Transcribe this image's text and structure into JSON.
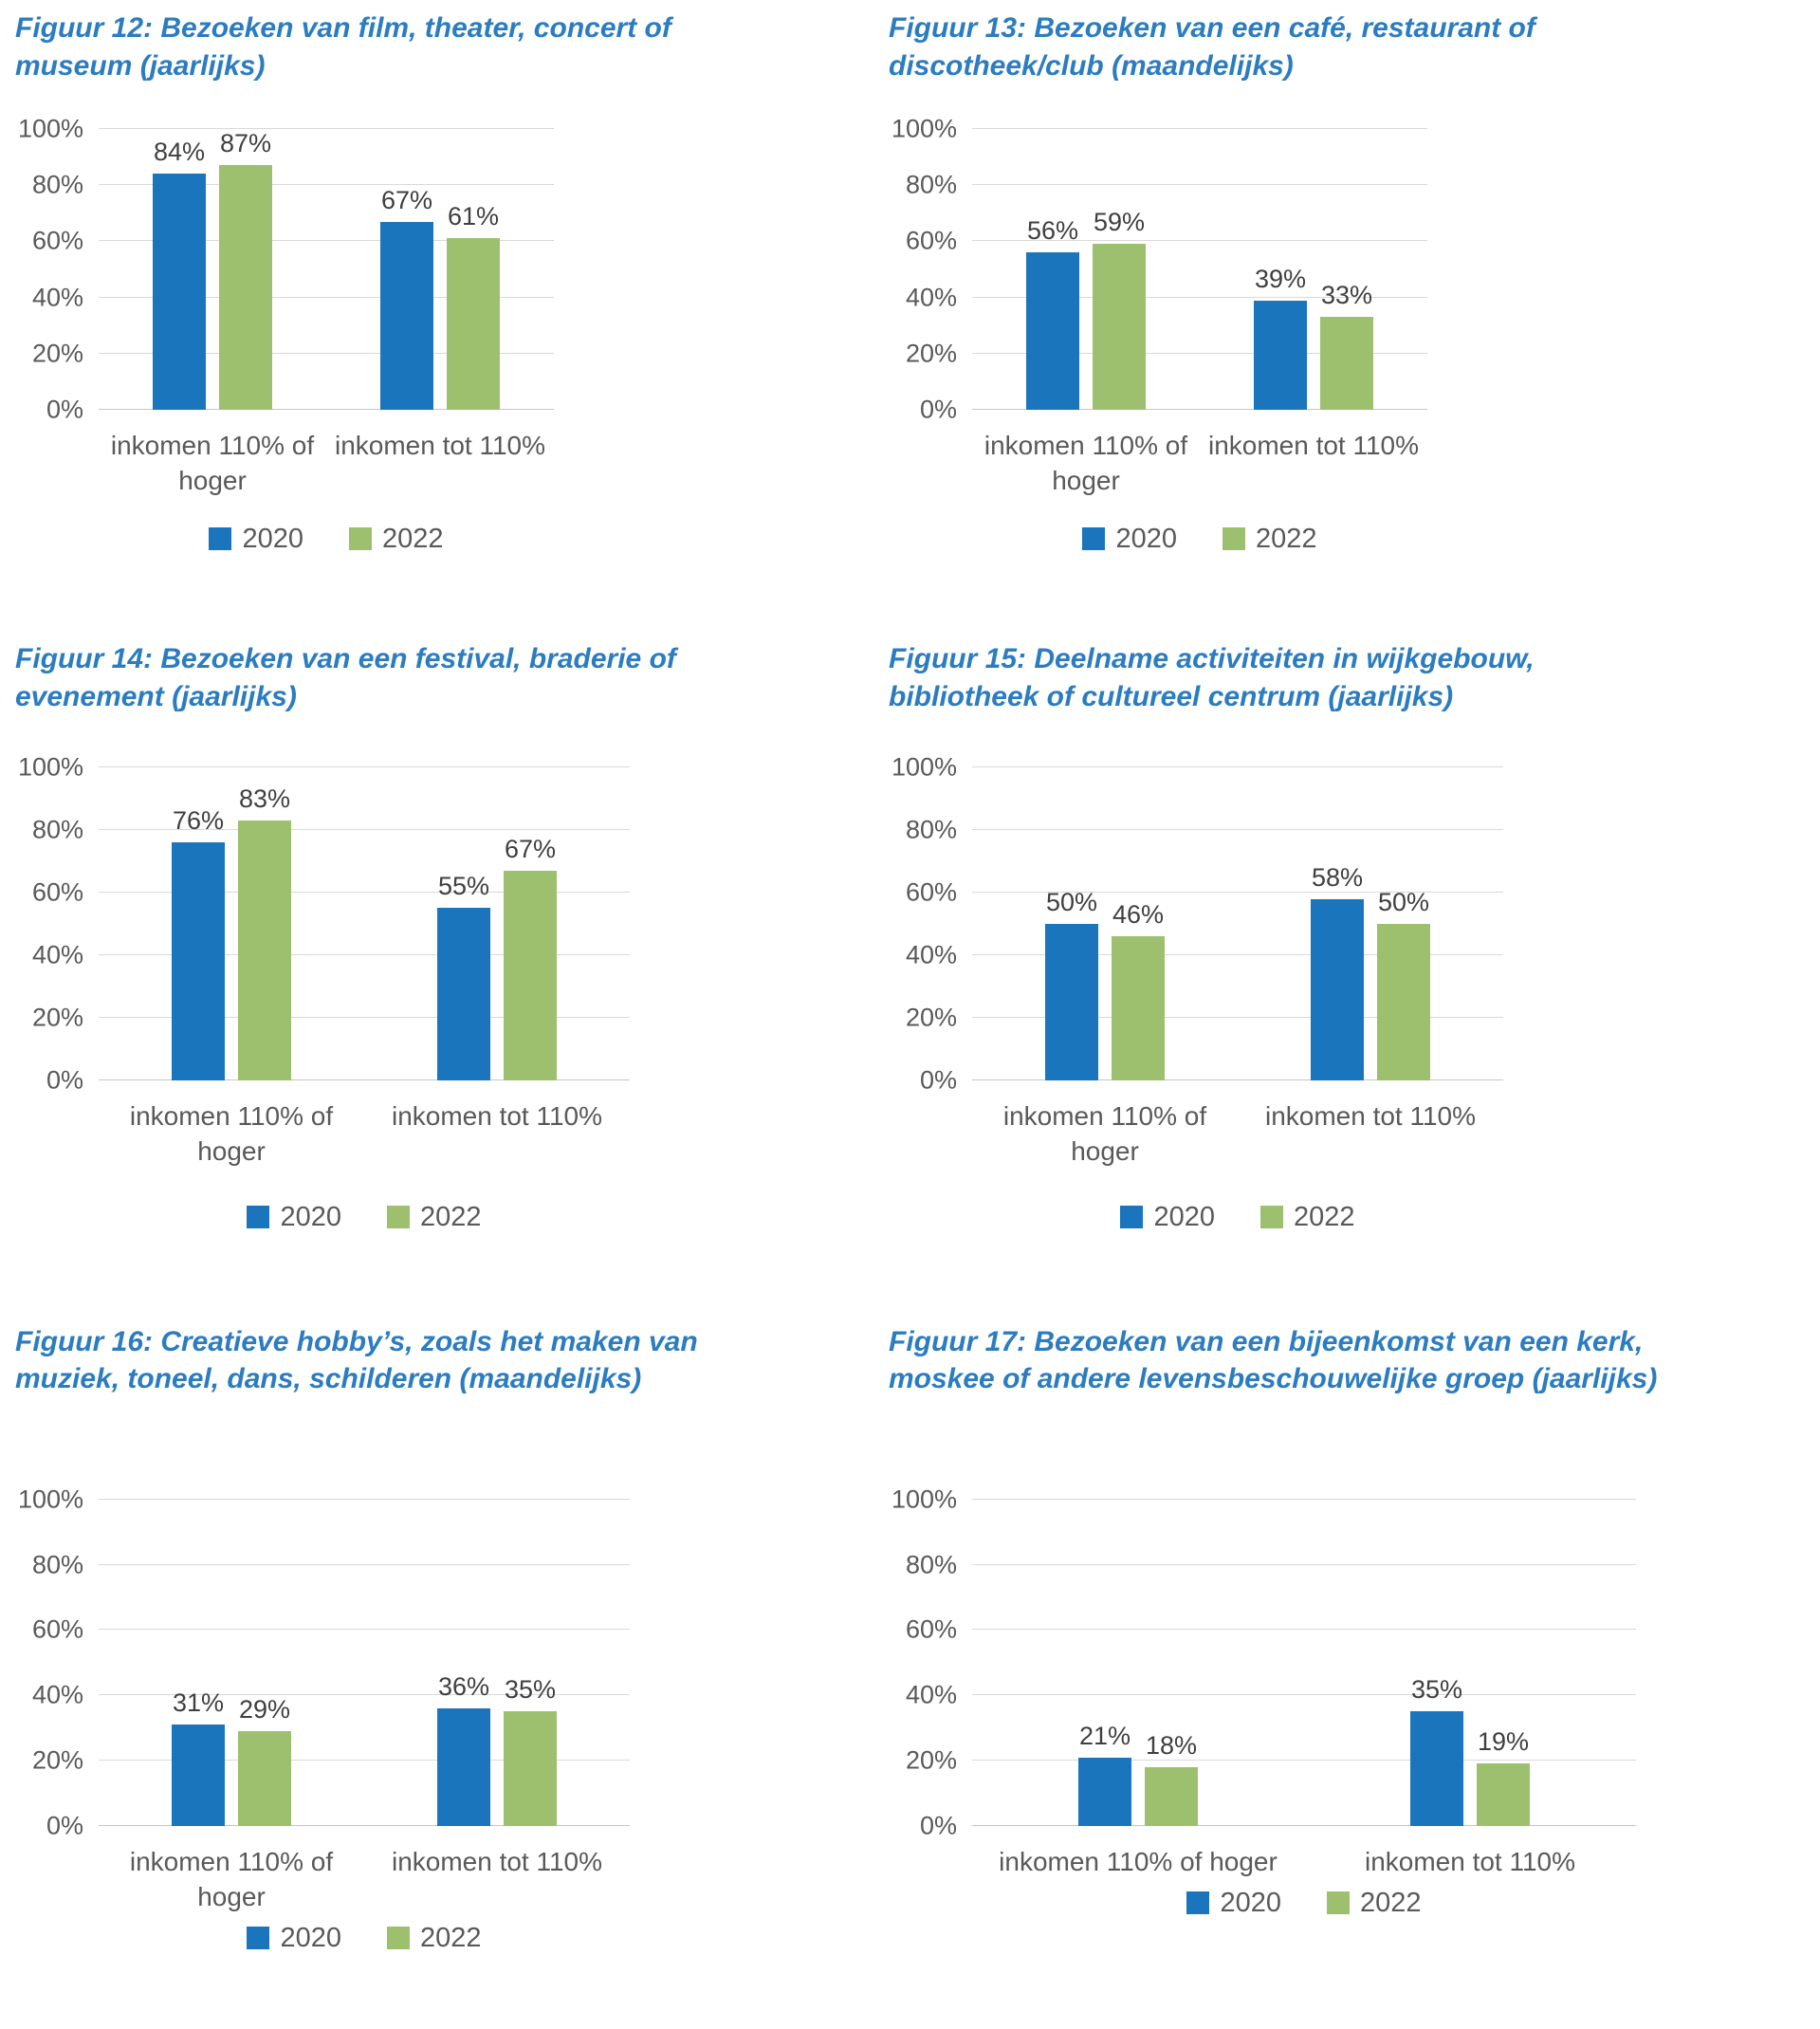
{
  "colors": {
    "title_blue": "#2B7CC0",
    "series_2020": "#1B75BC",
    "series_2022": "#9DC06E",
    "axis_text": "#595959",
    "data_label_text": "#3F3F3F",
    "gridline": "#D9D9D9"
  },
  "y_axis": {
    "ticks": [
      "100%",
      "80%",
      "60%",
      "40%",
      "20%",
      "0%"
    ],
    "min": 0,
    "max": 100
  },
  "legend": {
    "items": [
      {
        "label": "2020",
        "color_key": "series_2020"
      },
      {
        "label": "2022",
        "color_key": "series_2022"
      }
    ]
  },
  "chart_data": [
    {
      "type": "bar",
      "title": "Figuur 12: Bezoeken van film, theater, concert of museum (jaarlijks)",
      "categories": [
        "inkomen 110% of hoger",
        "inkomen tot 110%"
      ],
      "series": [
        {
          "name": "2020",
          "values": [
            84,
            67
          ],
          "labels": [
            "84%",
            "67%"
          ]
        },
        {
          "name": "2022",
          "values": [
            87,
            61
          ],
          "labels": [
            "87%",
            "61%"
          ]
        }
      ],
      "ylim": [
        0,
        100
      ],
      "grid": true,
      "legend_position": "bottom"
    },
    {
      "type": "bar",
      "title": "Figuur 13: Bezoeken van een café, restaurant of discotheek/club (maandelijks)",
      "categories": [
        "inkomen 110% of hoger",
        "inkomen tot 110%"
      ],
      "series": [
        {
          "name": "2020",
          "values": [
            56,
            39
          ],
          "labels": [
            "56%",
            "39%"
          ]
        },
        {
          "name": "2022",
          "values": [
            59,
            33
          ],
          "labels": [
            "59%",
            "33%"
          ]
        }
      ],
      "ylim": [
        0,
        100
      ],
      "grid": true,
      "legend_position": "bottom"
    },
    {
      "type": "bar",
      "title": "Figuur 14: Bezoeken van een festival, braderie of evenement (jaarlijks)",
      "categories": [
        "inkomen 110% of hoger",
        "inkomen tot 110%"
      ],
      "series": [
        {
          "name": "2020",
          "values": [
            76,
            55
          ],
          "labels": [
            "76%",
            "55%"
          ]
        },
        {
          "name": "2022",
          "values": [
            83,
            67
          ],
          "labels": [
            "83%",
            "67%"
          ]
        }
      ],
      "ylim": [
        0,
        100
      ],
      "grid": true,
      "legend_position": "bottom"
    },
    {
      "type": "bar",
      "title": "Figuur 15: Deelname activiteiten in wijkgebouw, bibliotheek of cultureel centrum (jaarlijks)",
      "categories": [
        "inkomen 110% of hoger",
        "inkomen tot 110%"
      ],
      "series": [
        {
          "name": "2020",
          "values": [
            50,
            58
          ],
          "labels": [
            "50%",
            "58%"
          ]
        },
        {
          "name": "2022",
          "values": [
            46,
            50
          ],
          "labels": [
            "46%",
            "50%"
          ]
        }
      ],
      "ylim": [
        0,
        100
      ],
      "grid": true,
      "legend_position": "bottom"
    },
    {
      "type": "bar",
      "title": "Figuur 16: Creatieve hobby’s, zoals het maken van muziek, toneel, dans, schilderen (maandelijks)",
      "categories": [
        "inkomen 110% of hoger",
        "inkomen tot 110%"
      ],
      "series": [
        {
          "name": "2020",
          "values": [
            31,
            36
          ],
          "labels": [
            "31%",
            "36%"
          ]
        },
        {
          "name": "2022",
          "values": [
            29,
            35
          ],
          "labels": [
            "29%",
            "35%"
          ]
        }
      ],
      "ylim": [
        0,
        100
      ],
      "grid": true,
      "legend_position": "bottom"
    },
    {
      "type": "bar",
      "title": "Figuur 17: Bezoeken van een bijeenkomst van een kerk, moskee of andere levensbeschouwelijke groep (jaarlijks)",
      "categories": [
        "inkomen 110% of hoger",
        "inkomen tot 110%"
      ],
      "series": [
        {
          "name": "2020",
          "values": [
            21,
            35
          ],
          "labels": [
            "21%",
            "35%"
          ]
        },
        {
          "name": "2022",
          "values": [
            18,
            19
          ],
          "labels": [
            "18%",
            "19%"
          ]
        }
      ],
      "ylim": [
        0,
        100
      ],
      "grid": true,
      "legend_position": "bottom"
    }
  ]
}
